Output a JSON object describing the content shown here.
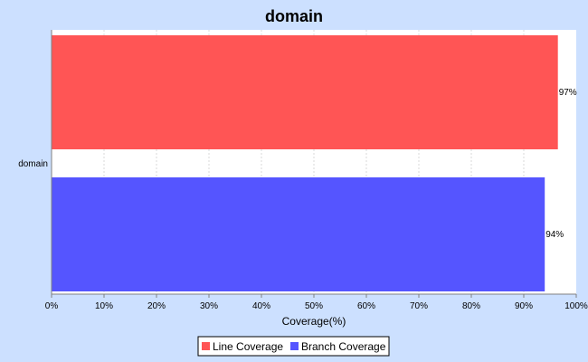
{
  "chart_data": {
    "type": "bar",
    "orientation": "horizontal",
    "title": "domain",
    "categories": [
      "domain"
    ],
    "series": [
      {
        "name": "Line Coverage",
        "values": [
          96.5
        ],
        "label": "97%"
      },
      {
        "name": "Branch Coverage",
        "values": [
          94
        ],
        "label": "94%"
      }
    ],
    "xlabel": "Coverage(%)",
    "ylabel": "",
    "xlim": [
      0,
      100
    ],
    "xticks": [
      "0%",
      "10%",
      "20%",
      "30%",
      "40%",
      "50%",
      "60%",
      "70%",
      "80%",
      "90%",
      "100%"
    ],
    "grid": true,
    "legend_placement": "bottom",
    "colors": {
      "background": "#cce0ff",
      "plot": "#ffffff",
      "line": "#ff5555",
      "branch": "#5555ff"
    }
  }
}
